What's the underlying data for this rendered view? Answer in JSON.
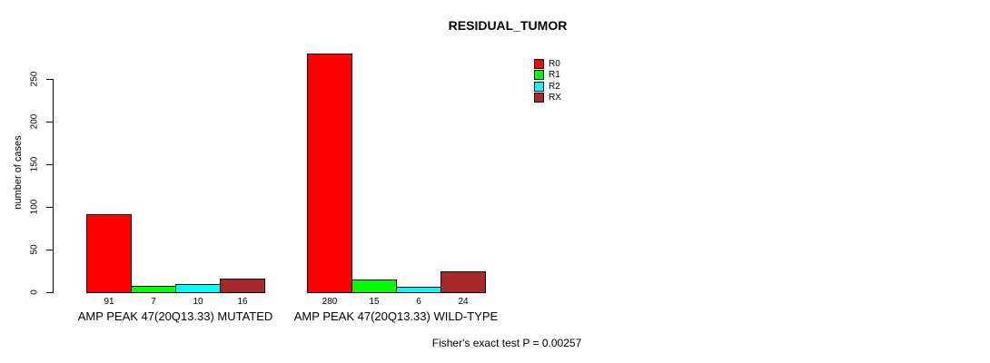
{
  "chart_data": {
    "type": "bar",
    "title": "RESIDUAL_TUMOR",
    "ylabel": "number of cases",
    "xlabel": "",
    "categories": [
      "AMP PEAK 47(20Q13.33) MUTATED",
      "AMP PEAK 47(20Q13.33) WILD-TYPE"
    ],
    "series": [
      {
        "name": "R0",
        "color": "#FF0000",
        "values": [
          91,
          280
        ]
      },
      {
        "name": "R1",
        "color": "#00FF00",
        "values": [
          7,
          15
        ]
      },
      {
        "name": "R2",
        "color": "#00FFFF",
        "values": [
          10,
          6
        ]
      },
      {
        "name": "RX",
        "color": "#A52A2A",
        "values": [
          16,
          24
        ]
      }
    ],
    "yticks": [
      0,
      50,
      100,
      150,
      200,
      250
    ],
    "ylim": [
      0,
      280
    ],
    "bar_value_labels": true,
    "grid": false,
    "legend": {
      "position": "top-right",
      "entries": [
        "R0",
        "R1",
        "R2",
        "RX"
      ]
    },
    "annotation": "Fisher's exact test P = 0.00257"
  }
}
